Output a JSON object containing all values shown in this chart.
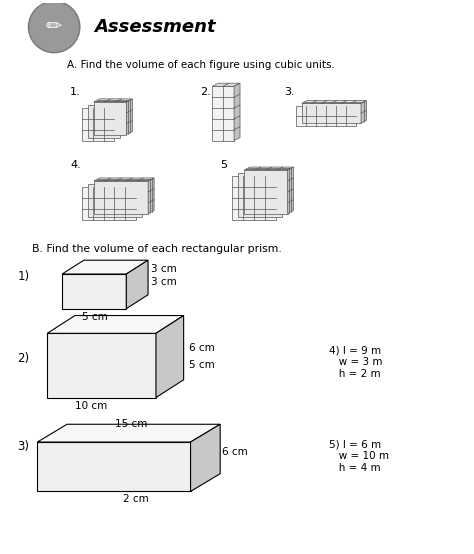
{
  "title": "Assessment",
  "section_a_title": "A. Find the volume of each figure using cubic units.",
  "section_b_title": "B. Find the volume of each rectangular prism.",
  "background_color": "#ffffff",
  "header_circle_color": "#888888",
  "grid_line_color": "#555555",
  "b1_dims": [
    "3 cm",
    "3 cm",
    "5 cm"
  ],
  "b2_dims": [
    "6 cm",
    "5 cm",
    "10 cm"
  ],
  "b3_dims": [
    "15 cm",
    "6 cm",
    "2 cm"
  ],
  "b4_text": [
    "4) l = 9 m",
    "   w = 3 m",
    "   h = 2 m"
  ],
  "b5_text": [
    "5) l = 6 m",
    "   w = 10 m",
    "   h = 4 m"
  ]
}
